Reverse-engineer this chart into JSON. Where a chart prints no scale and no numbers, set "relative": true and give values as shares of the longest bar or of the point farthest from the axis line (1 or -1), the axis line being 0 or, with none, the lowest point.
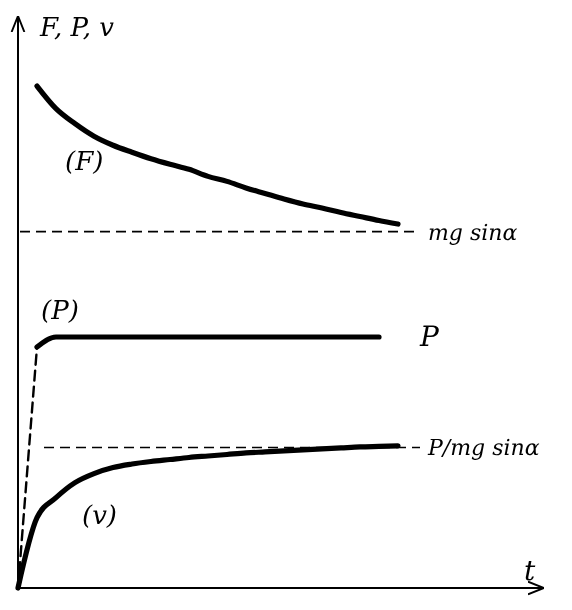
{
  "chart_data": {
    "type": "line",
    "relative": true,
    "xlabel": "t",
    "ylabel": "F, P, v",
    "categories": [
      null,
      null,
      null,
      null,
      null,
      null,
      null,
      null,
      null,
      null,
      null,
      null,
      null,
      null,
      null,
      null,
      null,
      null,
      null,
      null,
      null
    ],
    "series": [
      {
        "name": "(F)",
        "color": "#000000",
        "line_style": "solid",
        "values": [
          null,
          1,
          0.955,
          0.925,
          0.9,
          0.882,
          0.868,
          0.855,
          0.844,
          0.834,
          0.82,
          0.81,
          0.797,
          0.786,
          0.775,
          0.765,
          0.757,
          0.748,
          0.74,
          0.732,
          0.725
        ]
      },
      {
        "name": "(P)",
        "color": "#000000",
        "line_style": "solid",
        "values": [
          null,
          0.48,
          0.5,
          0.5,
          0.5,
          0.5,
          0.5,
          0.5,
          0.5,
          0.5,
          0.5,
          0.5,
          0.5,
          0.5,
          0.5,
          0.5,
          0.5,
          0.5,
          0.5,
          0.5,
          null
        ]
      },
      {
        "color": "#000000",
        "line_style": "dashed",
        "values": [
          0,
          0.48,
          null,
          null,
          null,
          null,
          null,
          null,
          null,
          null,
          null,
          null,
          null,
          null,
          null,
          null,
          null,
          null,
          null,
          null,
          null
        ]
      },
      {
        "name": "(v)",
        "color": "#000000",
        "line_style": "solid",
        "values": [
          0,
          0.14,
          0.18,
          0.21,
          0.228,
          0.24,
          0.247,
          0.252,
          0.256,
          0.26,
          0.263,
          0.266,
          0.269,
          0.271,
          0.273,
          0.275,
          0.277,
          0.279,
          0.281,
          0.282,
          0.283
        ]
      }
    ],
    "ref_lines": [
      {
        "axis": "y",
        "value": 0.71,
        "label": "mg sinα",
        "line_style": "dashed",
        "color": "#000000"
      },
      {
        "axis": "y",
        "value": 0.28,
        "label": "P/mg sinα",
        "line_style": "dashed",
        "color": "#000000"
      }
    ],
    "annotations": [
      "P"
    ],
    "grid": false,
    "marker": "none"
  }
}
